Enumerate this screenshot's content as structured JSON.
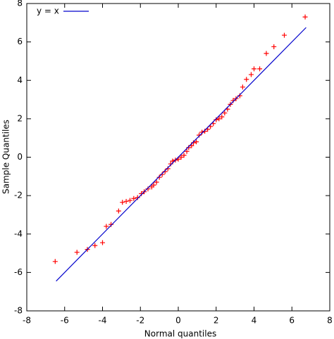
{
  "chart_data": {
    "type": "scatter",
    "xlabel": "Normal quantiles",
    "ylabel": "Sample Quantiles",
    "xlim": [
      -8,
      8
    ],
    "ylim": [
      -8,
      8
    ],
    "xticks": [
      -8,
      -6,
      -4,
      -2,
      0,
      2,
      4,
      6,
      8
    ],
    "yticks": [
      -8,
      -6,
      -4,
      -2,
      0,
      2,
      4,
      6,
      8
    ],
    "grid": false,
    "legend": "top-left",
    "series": [
      {
        "type": "scatter",
        "color": "#ff0000",
        "x": [
          -6.5,
          -5.35,
          -4.8,
          -4.4,
          -4.0,
          -3.8,
          -3.55,
          -3.15,
          -2.95,
          -2.75,
          -2.55,
          -2.35,
          -2.15,
          -1.95,
          -1.8,
          -1.6,
          -1.4,
          -1.3,
          -1.15,
          -1.0,
          -0.85,
          -0.7,
          -0.55,
          -0.4,
          -0.3,
          -0.15,
          0,
          0.15,
          0.3,
          0.45,
          0.55,
          0.7,
          0.8,
          0.95,
          1.1,
          1.25,
          1.4,
          1.55,
          1.7,
          1.85,
          2.0,
          2.15,
          2.3,
          2.45,
          2.6,
          2.75,
          2.9,
          3.05,
          3.25,
          3.4,
          3.6,
          3.85,
          4.0,
          4.3,
          4.65,
          5.05,
          5.6,
          6.7
        ],
        "values": [
          -5.43,
          -4.95,
          -4.8,
          -4.6,
          -4.45,
          -3.6,
          -3.5,
          -2.8,
          -2.35,
          -2.3,
          -2.25,
          -2.15,
          -2.1,
          -1.9,
          -1.8,
          -1.65,
          -1.55,
          -1.45,
          -1.3,
          -1.05,
          -0.9,
          -0.75,
          -0.6,
          -0.35,
          -0.2,
          -0.15,
          -0.1,
          0,
          0.1,
          0.3,
          0.5,
          0.6,
          0.75,
          0.8,
          1.15,
          1.3,
          1.35,
          1.45,
          1.6,
          1.75,
          1.95,
          2.0,
          2.1,
          2.3,
          2.5,
          2.75,
          2.95,
          3.05,
          3.2,
          3.65,
          4.05,
          4.3,
          4.6,
          4.6,
          5.4,
          5.75,
          6.35,
          7.3
        ]
      },
      {
        "type": "line",
        "name": "y = x",
        "color": "#0000cc",
        "x": [
          -6.45,
          6.75
        ],
        "values": [
          -6.45,
          6.75
        ]
      }
    ]
  }
}
